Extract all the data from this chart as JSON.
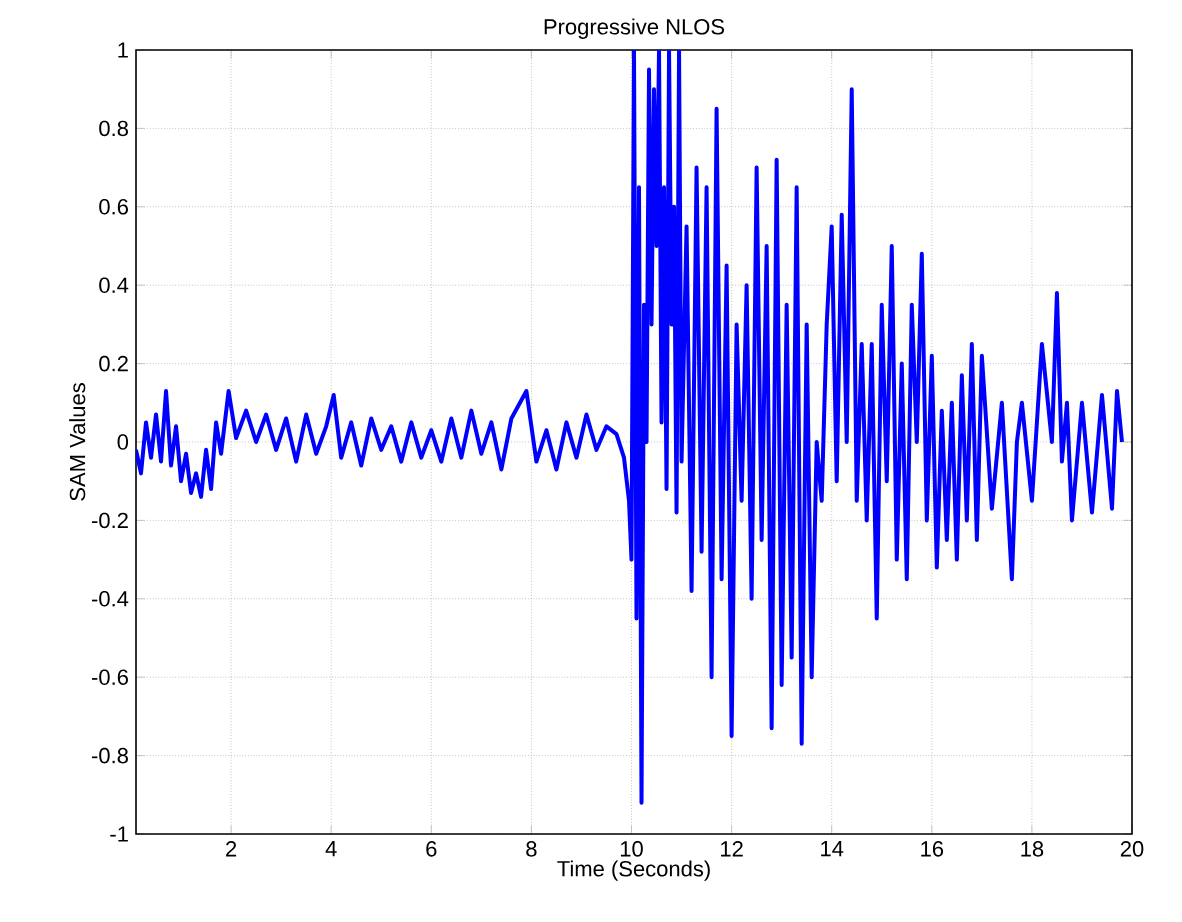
{
  "chart_data": {
    "type": "line",
    "title": "Progressive NLOS",
    "xlabel": "Time (Seconds)",
    "ylabel": "SAM Values",
    "xlim": [
      0.1,
      20
    ],
    "ylim": [
      -1,
      1
    ],
    "xticks": [
      2,
      4,
      6,
      8,
      10,
      12,
      14,
      16,
      18,
      20
    ],
    "yticks": [
      -1,
      -0.8,
      -0.6,
      -0.4,
      -0.2,
      0,
      0.2,
      0.4,
      0.6,
      0.8,
      1
    ],
    "grid": true,
    "line_style": "solid",
    "marker": "none",
    "series": [
      {
        "color": "#0000ff",
        "x": [
          0.1,
          0.2,
          0.3,
          0.4,
          0.5,
          0.6,
          0.7,
          0.8,
          0.9,
          1.0,
          1.1,
          1.2,
          1.3,
          1.4,
          1.5,
          1.6,
          1.7,
          1.8,
          1.95,
          2.1,
          2.3,
          2.5,
          2.7,
          2.9,
          3.1,
          3.3,
          3.5,
          3.7,
          3.9,
          4.05,
          4.2,
          4.4,
          4.6,
          4.8,
          5.0,
          5.2,
          5.4,
          5.6,
          5.8,
          6.0,
          6.2,
          6.4,
          6.6,
          6.8,
          7.0,
          7.2,
          7.4,
          7.6,
          7.9,
          8.1,
          8.3,
          8.5,
          8.7,
          8.9,
          9.1,
          9.3,
          9.5,
          9.7,
          9.85,
          9.95,
          10.0,
          10.05,
          10.1,
          10.15,
          10.2,
          10.25,
          10.3,
          10.35,
          10.4,
          10.45,
          10.5,
          10.55,
          10.6,
          10.65,
          10.7,
          10.75,
          10.8,
          10.85,
          10.9,
          10.95,
          11.0,
          11.1,
          11.2,
          11.3,
          11.4,
          11.5,
          11.6,
          11.7,
          11.8,
          11.9,
          12.0,
          12.1,
          12.2,
          12.3,
          12.4,
          12.5,
          12.6,
          12.7,
          12.8,
          12.9,
          13.0,
          13.1,
          13.2,
          13.3,
          13.4,
          13.5,
          13.6,
          13.7,
          13.8,
          13.9,
          14.0,
          14.1,
          14.2,
          14.3,
          14.4,
          14.5,
          14.6,
          14.7,
          14.8,
          14.9,
          15.0,
          15.1,
          15.2,
          15.3,
          15.4,
          15.5,
          15.6,
          15.7,
          15.8,
          15.9,
          16.0,
          16.1,
          16.2,
          16.3,
          16.4,
          16.5,
          16.6,
          16.7,
          16.8,
          16.9,
          17.0,
          17.2,
          17.4,
          17.6,
          17.7,
          17.8,
          18.0,
          18.2,
          18.4,
          18.5,
          18.6,
          18.7,
          18.8,
          19.0,
          19.2,
          19.4,
          19.6,
          19.7,
          19.8
        ],
        "values": [
          -0.02,
          -0.08,
          0.05,
          -0.04,
          0.07,
          -0.05,
          0.13,
          -0.06,
          0.04,
          -0.1,
          -0.03,
          -0.13,
          -0.08,
          -0.14,
          -0.02,
          -0.12,
          0.05,
          -0.03,
          0.13,
          0.01,
          0.08,
          0.0,
          0.07,
          -0.02,
          0.06,
          -0.05,
          0.07,
          -0.03,
          0.04,
          0.12,
          -0.04,
          0.05,
          -0.06,
          0.06,
          -0.02,
          0.04,
          -0.05,
          0.05,
          -0.04,
          0.03,
          -0.05,
          0.06,
          -0.04,
          0.08,
          -0.03,
          0.05,
          -0.07,
          0.06,
          0.13,
          -0.05,
          0.03,
          -0.07,
          0.05,
          -0.04,
          0.07,
          -0.02,
          0.04,
          0.02,
          -0.04,
          -0.15,
          -0.3,
          1.0,
          -0.45,
          0.65,
          -0.92,
          0.35,
          0.0,
          0.95,
          0.3,
          0.9,
          0.5,
          1.0,
          0.05,
          0.65,
          -0.12,
          1.0,
          0.3,
          0.6,
          -0.18,
          1.0,
          -0.05,
          0.55,
          -0.38,
          0.7,
          -0.28,
          0.65,
          -0.6,
          0.85,
          -0.35,
          0.45,
          -0.75,
          0.3,
          -0.15,
          0.4,
          -0.4,
          0.7,
          -0.25,
          0.5,
          -0.73,
          0.72,
          -0.62,
          0.35,
          -0.55,
          0.65,
          -0.77,
          0.3,
          -0.6,
          0.0,
          -0.15,
          0.3,
          0.55,
          -0.1,
          0.58,
          0.0,
          0.9,
          -0.15,
          0.25,
          -0.2,
          0.25,
          -0.45,
          0.35,
          -0.1,
          0.5,
          -0.3,
          0.2,
          -0.35,
          0.35,
          0.0,
          0.48,
          -0.2,
          0.22,
          -0.32,
          0.08,
          -0.25,
          0.1,
          -0.3,
          0.17,
          -0.2,
          0.25,
          -0.25,
          0.22,
          -0.17,
          0.1,
          -0.35,
          0.0,
          0.1,
          -0.15,
          0.25,
          0.0,
          0.38,
          -0.05,
          0.1,
          -0.2,
          0.1,
          -0.18,
          0.12,
          -0.17,
          0.13,
          0.0
        ]
      }
    ]
  }
}
